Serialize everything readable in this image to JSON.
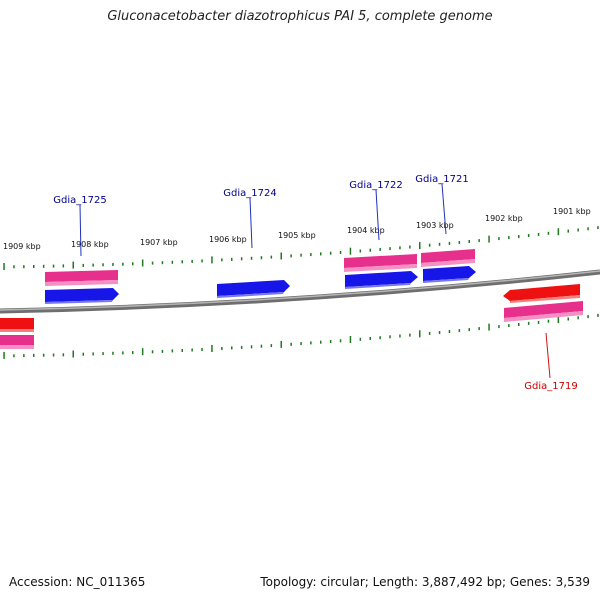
{
  "title": "Gluconacetobacter diazotrophicus PAI 5, complete genome",
  "footer": {
    "accession": "Accession: NC_011365",
    "stats": "Topology: circular; Length: 3,887,492 bp; Genes: 3,539"
  },
  "colors": {
    "backbone": "#7a7a7a",
    "tick": "#1f7a1f",
    "forward_gene": "#1a1aee",
    "reverse_gene": "#ee1111",
    "rna_track": "#ee3399",
    "label_forward": "#00008b",
    "label_reverse": "#cc0000"
  },
  "scale_labels": [
    "1909 kbp",
    "1908 kbp",
    "1907 kbp",
    "1906 kbp",
    "1905 kbp",
    "1904 kbp",
    "1903 kbp",
    "1902 kbp",
    "1901 kbp"
  ],
  "gene_labels": [
    {
      "name": "Gdia_1725",
      "strand": "forward"
    },
    {
      "name": "Gdia_1724",
      "strand": "forward"
    },
    {
      "name": "Gdia_1722",
      "strand": "forward"
    },
    {
      "name": "Gdia_1721",
      "strand": "forward"
    },
    {
      "name": "Gdia_1719",
      "strand": "reverse"
    }
  ]
}
